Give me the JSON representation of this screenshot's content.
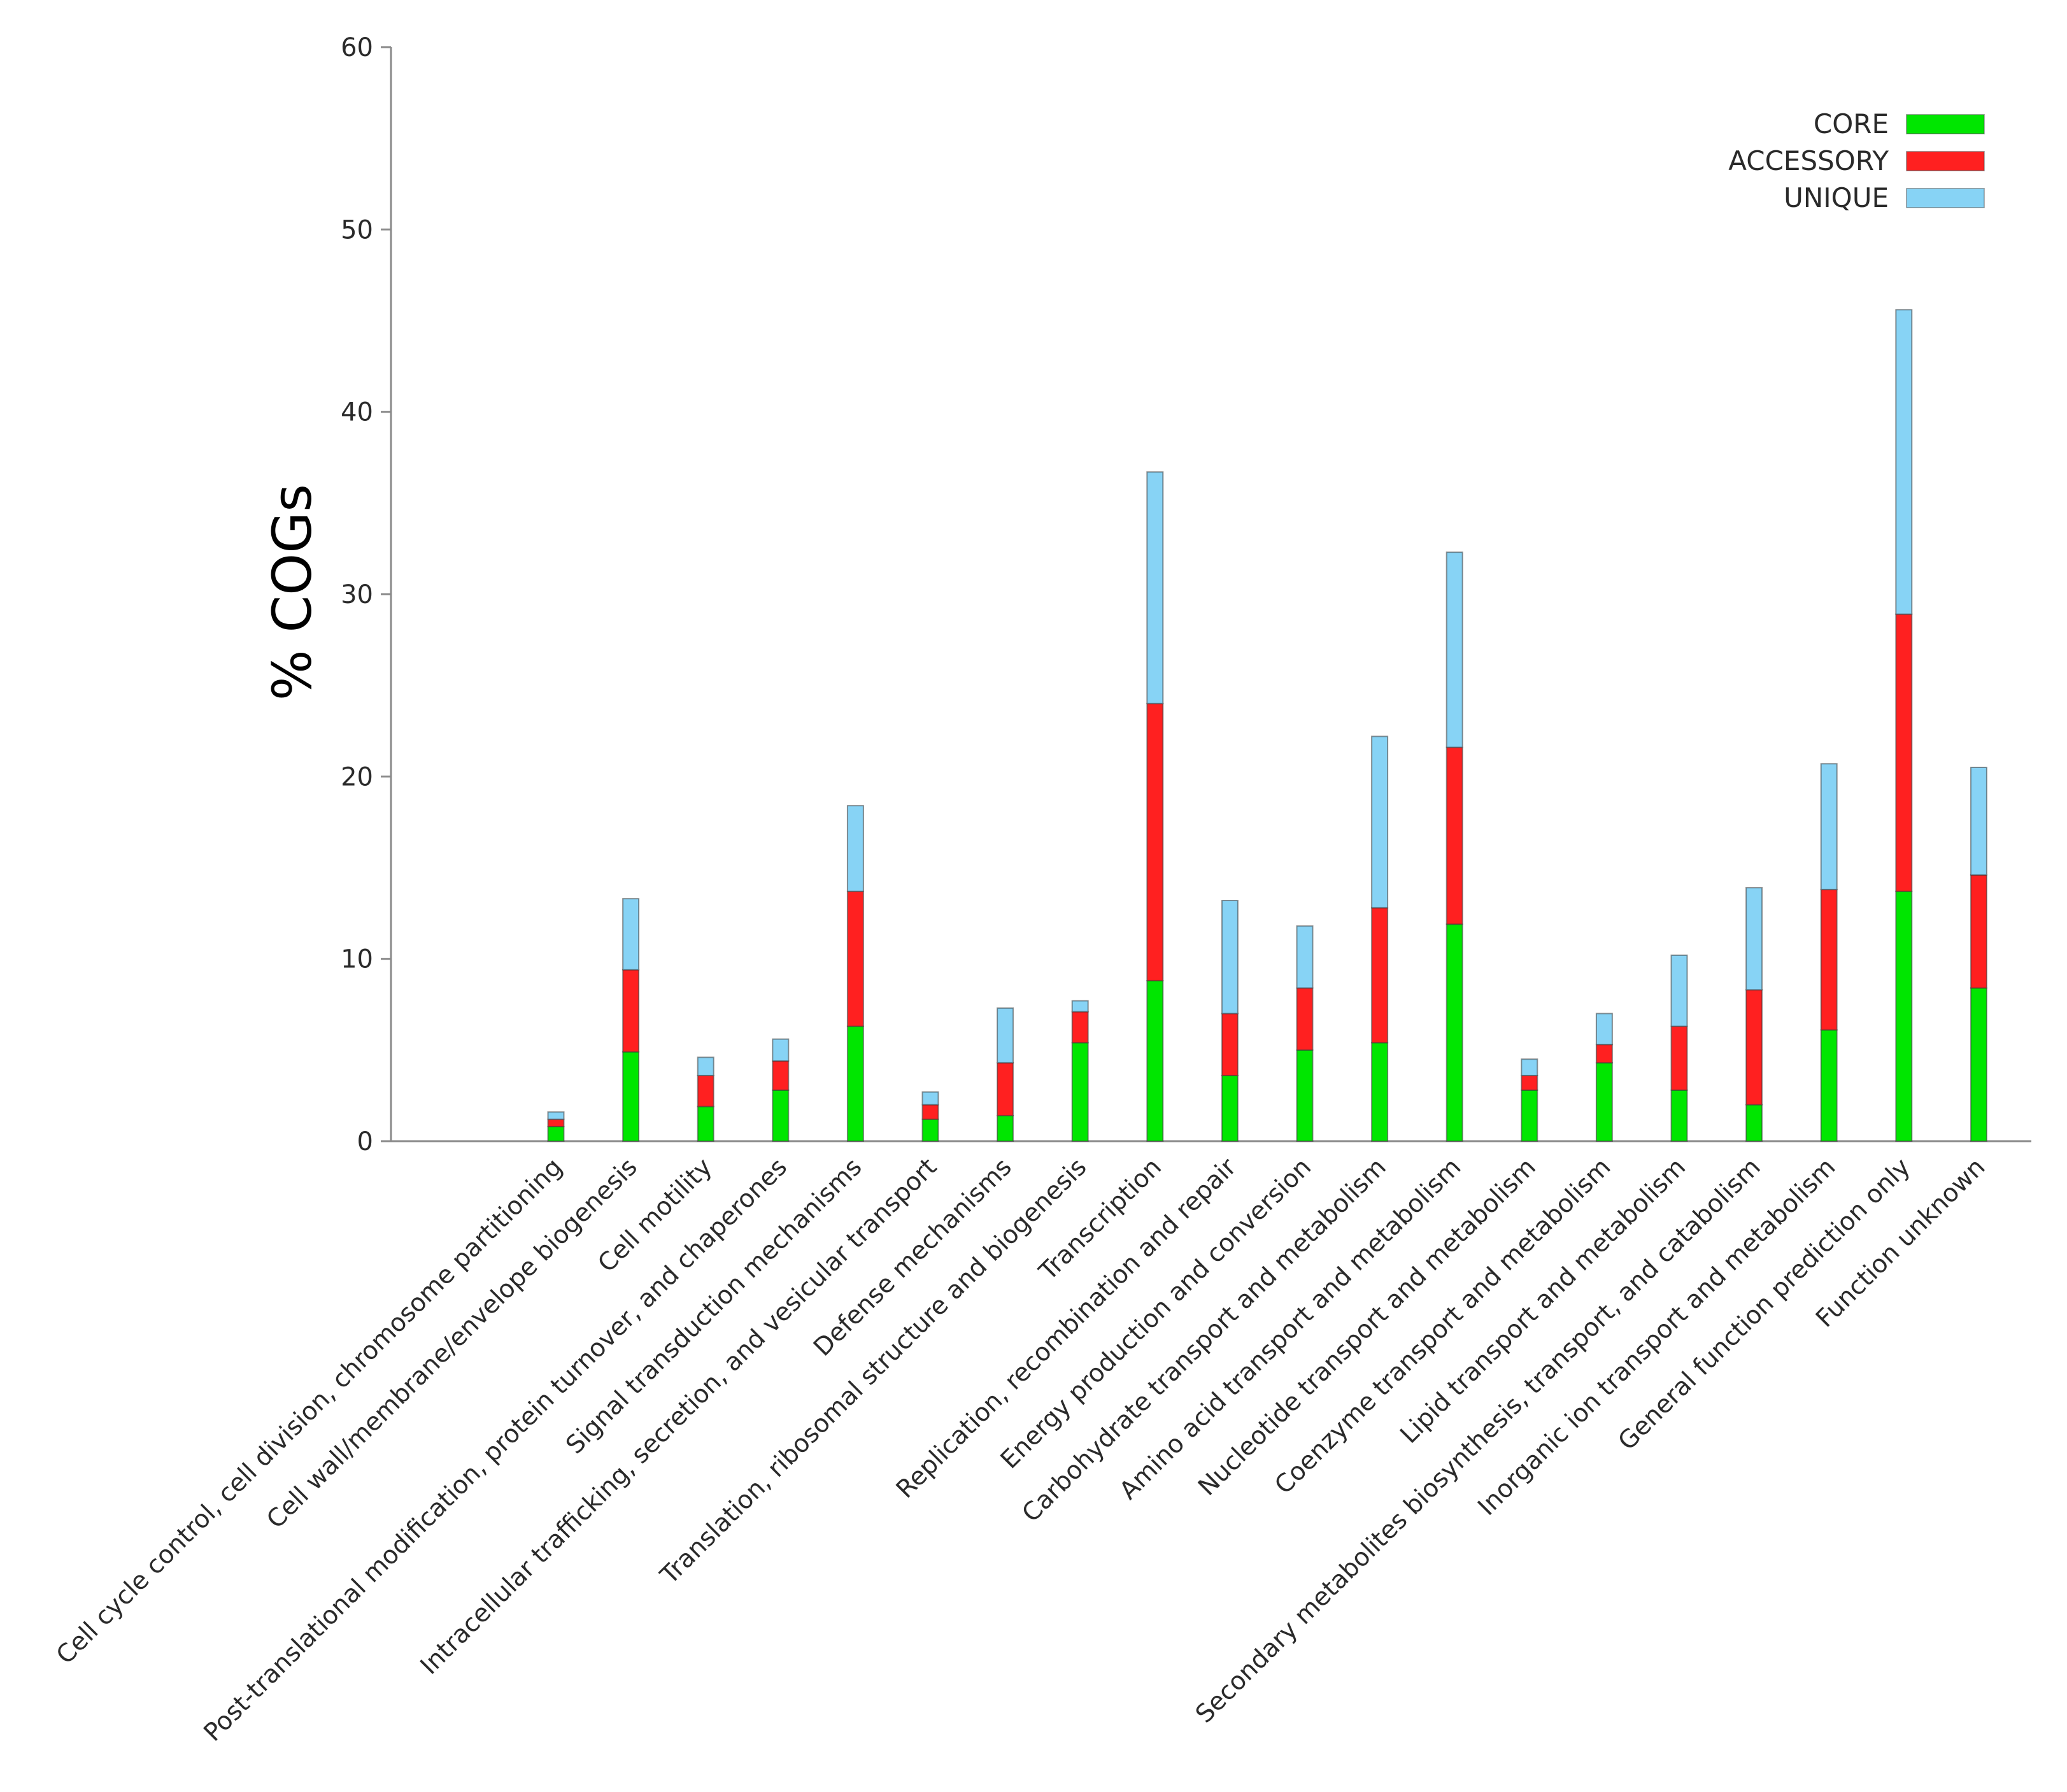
{
  "chart_data": {
    "type": "bar",
    "stacked": true,
    "title": "",
    "xlabel": "",
    "ylabel": "% COGs",
    "ylim": [
      0,
      60
    ],
    "yticks": [
      0,
      10,
      20,
      30,
      40,
      50,
      60
    ],
    "grid": false,
    "legend_position": "top-right",
    "categories": [
      "Cell cycle control, cell division, chromosome partitioning",
      "Cell wall/membrane/envelope biogenesis",
      "Cell motility",
      "Post-translational modification, protein turnover, and chaperones",
      "Signal transduction mechanisms",
      "Intracellular trafficking, secretion, and vesicular transport",
      "Defense mechanisms",
      "Translation, ribosomal structure and biogenesis",
      "Transcription",
      "Replication, recombination and repair",
      "Energy production and conversion",
      "Carbohydrate transport and metabolism",
      "Amino acid transport and metabolism",
      "Nucleotide transport and metabolism",
      "Coenzyme transport and metabolism",
      "Lipid transport and metabolism",
      "Secondary metabolites biosynthesis, transport, and catabolism",
      "Inorganic ion transport and metabolism",
      "General function prediction only",
      "Function unknown"
    ],
    "series": [
      {
        "name": "CORE",
        "color": "#00e600",
        "values": [
          0.8,
          4.9,
          1.9,
          2.8,
          6.3,
          1.2,
          1.4,
          5.4,
          8.8,
          3.6,
          5.0,
          5.4,
          11.9,
          2.8,
          4.3,
          2.8,
          2.0,
          6.1,
          13.7,
          8.4
        ]
      },
      {
        "name": "ACCESSORY",
        "color": "#ff2020",
        "values": [
          0.4,
          4.5,
          1.7,
          1.6,
          7.4,
          0.8,
          2.9,
          1.7,
          15.2,
          3.4,
          3.4,
          7.4,
          9.7,
          0.8,
          1.0,
          3.5,
          6.3,
          7.7,
          15.2,
          6.2
        ]
      },
      {
        "name": "UNIQUE",
        "color": "#87d3f5",
        "values": [
          0.4,
          3.9,
          1.0,
          1.2,
          4.7,
          0.7,
          3.0,
          0.6,
          12.7,
          6.2,
          3.4,
          9.4,
          10.7,
          0.9,
          1.7,
          3.9,
          5.6,
          6.9,
          16.7,
          5.9
        ]
      }
    ]
  }
}
